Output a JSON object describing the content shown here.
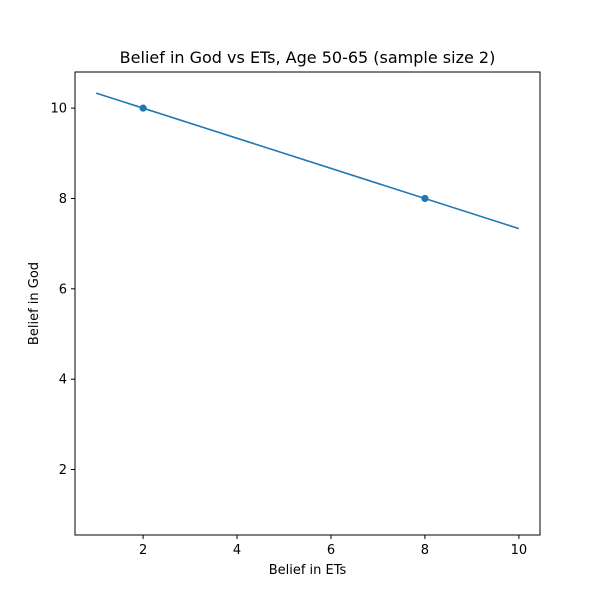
{
  "chart_data": {
    "type": "scatter",
    "title": "Belief in God vs ETs, Age 50-65 (sample size 2)",
    "xlabel": "Belief in ETs",
    "ylabel": "Belief in God",
    "xlim": [
      0.55,
      10.45
    ],
    "ylim": [
      0.55,
      10.8
    ],
    "xticks": [
      2,
      4,
      6,
      8,
      10
    ],
    "yticks": [
      2,
      4,
      6,
      8,
      10
    ],
    "grid": false,
    "series": [
      {
        "type": "scatter",
        "x": [
          2,
          8
        ],
        "y": [
          10,
          8
        ],
        "color": "#1f77b4"
      },
      {
        "type": "line",
        "x": [
          1,
          10
        ],
        "y": [
          10.333,
          7.333
        ],
        "color": "#1f77b4"
      }
    ]
  }
}
